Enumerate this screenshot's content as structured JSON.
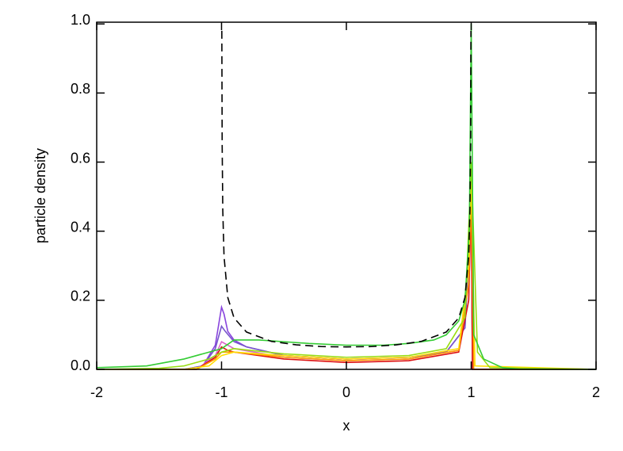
{
  "chart_data": {
    "type": "line",
    "xlabel": "x",
    "ylabel": "particle density",
    "xlim": [
      -2,
      2
    ],
    "ylim": [
      0,
      1.005
    ],
    "xticks": [
      -2,
      -1,
      0,
      1,
      2
    ],
    "yticks": [
      {
        "value": 0,
        "label": "0.0"
      },
      {
        "value": 0.2,
        "label": "0.2"
      },
      {
        "value": 0.4,
        "label": "0.4"
      },
      {
        "value": 0.6,
        "label": "0.6"
      },
      {
        "value": 0.8,
        "label": "0.8"
      },
      {
        "value": 1.0,
        "label": "1.0"
      }
    ],
    "series": [
      {
        "color": "#8844dd",
        "x": [
          -2,
          -1.3,
          -1.15,
          -1.05,
          -1.0,
          -0.98,
          -0.95,
          -0.9,
          -0.8,
          -0.5,
          0,
          0.5,
          0.8,
          0.95,
          0.99,
          1.0,
          1.01,
          2
        ],
        "values": [
          0,
          0,
          0.01,
          0.07,
          0.18,
          0.16,
          0.11,
          0.085,
          0.065,
          0.04,
          0.03,
          0.035,
          0.05,
          0.12,
          0.4,
          0.6,
          0,
          0
        ]
      },
      {
        "color": "#7755cc",
        "x": [
          -2,
          -1.3,
          -1.15,
          -1.05,
          -1.0,
          -0.97,
          -0.9,
          -0.8,
          -0.5,
          0,
          0.5,
          0.8,
          0.95,
          0.99,
          1.0,
          1.01,
          2
        ],
        "values": [
          0,
          0,
          0.01,
          0.06,
          0.125,
          0.11,
          0.08,
          0.065,
          0.04,
          0.03,
          0.035,
          0.05,
          0.12,
          0.4,
          0.6,
          0,
          0
        ]
      },
      {
        "color": "#dd66cc",
        "x": [
          -2,
          -1.2,
          -1.05,
          -1.0,
          -0.95,
          -0.9,
          -0.5,
          0,
          0.5,
          0.9,
          0.98,
          1.0,
          1.01,
          2
        ],
        "values": [
          0,
          0,
          0.04,
          0.08,
          0.07,
          0.06,
          0.035,
          0.025,
          0.03,
          0.055,
          0.2,
          0.5,
          0,
          0
        ]
      },
      {
        "color": "#dd1111",
        "x": [
          -2,
          -1.2,
          -1.05,
          -1.0,
          -0.95,
          -0.9,
          -0.5,
          0,
          0.5,
          0.9,
          0.98,
          1.0,
          1.01,
          2
        ],
        "values": [
          0,
          0,
          0.035,
          0.065,
          0.055,
          0.05,
          0.03,
          0.02,
          0.025,
          0.05,
          0.2,
          0.5,
          0,
          0
        ]
      },
      {
        "color": "#ff9900",
        "x": [
          -2,
          -1.2,
          -1.05,
          -1.0,
          -0.9,
          -0.5,
          0,
          0.5,
          0.9,
          0.98,
          1.0,
          1.02,
          2
        ],
        "values": [
          0,
          0,
          0.03,
          0.05,
          0.05,
          0.035,
          0.025,
          0.03,
          0.055,
          0.25,
          0.55,
          0,
          0
        ]
      },
      {
        "color": "#ffdd00",
        "x": [
          -2,
          -1.3,
          -1.1,
          -1.0,
          -0.9,
          -0.5,
          0,
          0.5,
          0.9,
          0.98,
          1.0,
          1.03,
          2
        ],
        "values": [
          0,
          0,
          0.01,
          0.04,
          0.05,
          0.04,
          0.03,
          0.035,
          0.06,
          0.3,
          0.55,
          0.01,
          0
        ]
      },
      {
        "color": "#99dd11",
        "x": [
          -2,
          -1.5,
          -1.3,
          -1.1,
          -1.0,
          -0.9,
          -0.5,
          0,
          0.5,
          0.8,
          0.95,
          0.99,
          1.0,
          1.05,
          1.15,
          2
        ],
        "values": [
          0,
          0.003,
          0.01,
          0.03,
          0.05,
          0.06,
          0.045,
          0.035,
          0.04,
          0.06,
          0.15,
          0.5,
          0.6,
          0.05,
          0.005,
          0
        ]
      },
      {
        "color": "#33cc33",
        "x": [
          -2,
          -1.6,
          -1.3,
          -1.2,
          -1.1,
          -1.0,
          -0.9,
          -0.7,
          -0.5,
          -0.3,
          0,
          0.3,
          0.5,
          0.7,
          0.8,
          0.9,
          0.95,
          0.985,
          1.0,
          1.02,
          1.1,
          1.25,
          1.4,
          2
        ],
        "values": [
          0.005,
          0.01,
          0.03,
          0.04,
          0.05,
          0.06,
          0.085,
          0.085,
          0.08,
          0.075,
          0.07,
          0.07,
          0.075,
          0.085,
          0.1,
          0.14,
          0.2,
          0.4,
          1.0,
          0.1,
          0.03,
          0.005,
          0,
          0
        ]
      },
      {
        "color": "#000000",
        "dashed": true,
        "x": [
          -0.9978,
          -0.995,
          -0.99,
          -0.98,
          -0.95,
          -0.9,
          -0.8,
          -0.6,
          -0.4,
          -0.2,
          0,
          0.2,
          0.4,
          0.6,
          0.8,
          0.9,
          0.95,
          0.98,
          0.99,
          0.995,
          0.9978
        ],
        "values": [
          0.98,
          0.65,
          0.461,
          0.327,
          0.208,
          0.149,
          0.108,
          0.081,
          0.071,
          0.066,
          0.065,
          0.066,
          0.071,
          0.081,
          0.108,
          0.149,
          0.208,
          0.327,
          0.461,
          0.65,
          0.98
        ]
      }
    ]
  }
}
